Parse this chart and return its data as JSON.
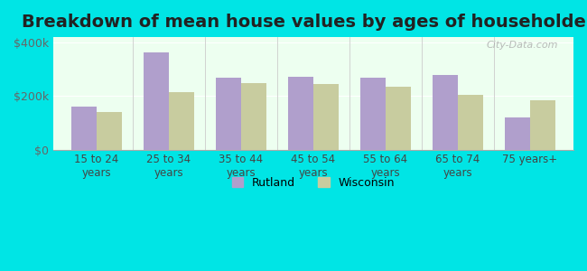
{
  "title": "Breakdown of mean house values by ages of householders",
  "categories": [
    "15 to 24\nyears",
    "25 to 34\nyears",
    "35 to 44\nyears",
    "45 to 54\nyears",
    "55 to 64\nyears",
    "65 to 74\nyears",
    "75 years+"
  ],
  "rutland": [
    162000,
    362000,
    270000,
    272000,
    268000,
    278000,
    120000
  ],
  "wisconsin": [
    142000,
    215000,
    248000,
    245000,
    235000,
    205000,
    183000
  ],
  "rutland_color": "#b09fcc",
  "wisconsin_color": "#c8cc9f",
  "plot_bg_color": "#edfff0",
  "outer_background": "#00e5e5",
  "ylim": [
    0,
    420000
  ],
  "ytick_labels": [
    "$0",
    "$200k",
    "$400k"
  ],
  "legend_rutland": "Rutland",
  "legend_wisconsin": "Wisconsin",
  "title_fontsize": 14,
  "watermark": "City-Data.com"
}
